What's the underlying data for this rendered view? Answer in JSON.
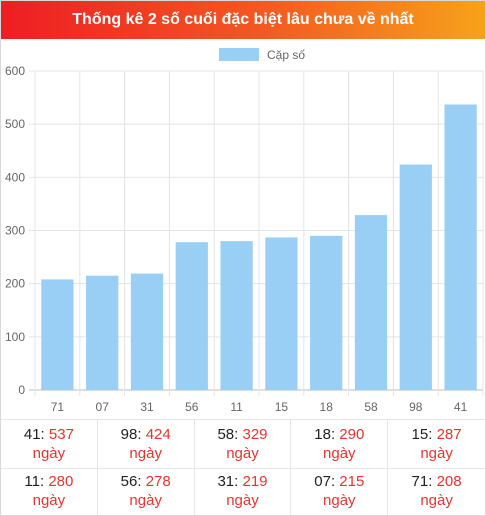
{
  "title": "Thống kê 2 số cuối đặc biệt lâu chưa về nhất",
  "chart_data": {
    "type": "bar",
    "categories": [
      "71",
      "07",
      "31",
      "56",
      "11",
      "15",
      "18",
      "58",
      "98",
      "41"
    ],
    "series": [
      {
        "name": "Cặp số",
        "values": [
          208,
          215,
          219,
          278,
          280,
          287,
          290,
          329,
          424,
          537
        ],
        "color": "#99cff5"
      }
    ],
    "ylim": [
      0,
      600
    ],
    "yticks": [
      "0",
      "100",
      "200",
      "300",
      "400",
      "500",
      "600"
    ],
    "grid": true,
    "legend_position": "top-center"
  },
  "stats": {
    "unit": "ngày",
    "rows": [
      [
        {
          "pair": "41",
          "count": "537"
        },
        {
          "pair": "98",
          "count": "424"
        },
        {
          "pair": "58",
          "count": "329"
        },
        {
          "pair": "18",
          "count": "290"
        },
        {
          "pair": "15",
          "count": "287"
        }
      ],
      [
        {
          "pair": "11",
          "count": "280"
        },
        {
          "pair": "56",
          "count": "278"
        },
        {
          "pair": "31",
          "count": "219"
        },
        {
          "pair": "07",
          "count": "215"
        },
        {
          "pair": "71",
          "count": "208"
        }
      ]
    ]
  }
}
